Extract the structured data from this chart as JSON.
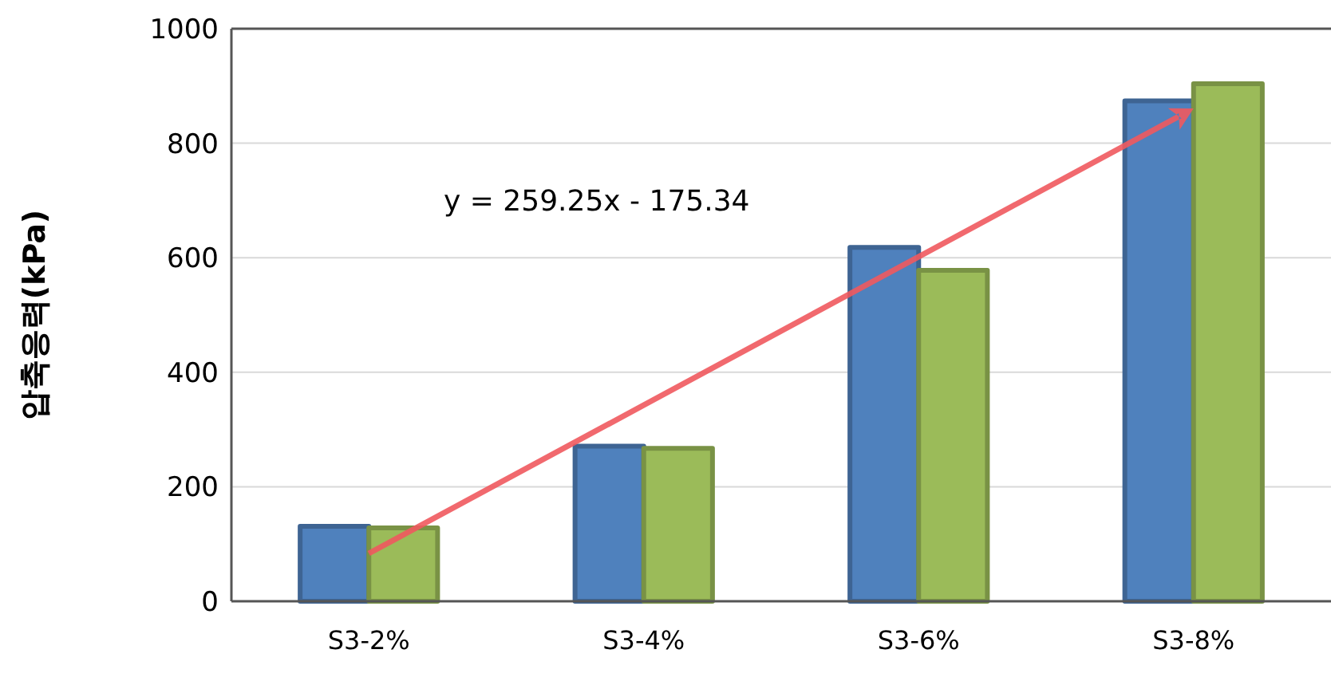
{
  "chart_data": {
    "type": "bar",
    "ylabel": "압축응력(kPa)",
    "categories": [
      "S3-2%",
      "S3-4%",
      "S3-6%",
      "S3-8%"
    ],
    "series": [
      {
        "color": "#4f81bd",
        "values": [
          131,
          271,
          618,
          874
        ]
      },
      {
        "color": "#9bbb59",
        "values": [
          128,
          267,
          578,
          904
        ]
      }
    ],
    "annotations": [
      "y = 259.25x - 175.34"
    ],
    "ylim": [
      0,
      1000
    ],
    "yticks": [
      0,
      200,
      400,
      600,
      800,
      1000
    ],
    "grid": "y"
  }
}
